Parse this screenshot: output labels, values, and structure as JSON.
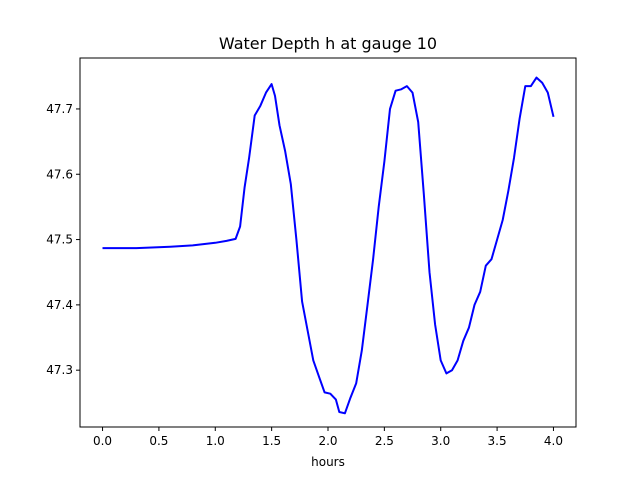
{
  "chart_data": {
    "type": "line",
    "title": "Water Depth h at gauge 10",
    "xlabel": "hours",
    "ylabel": "",
    "xlim": [
      -0.2,
      4.2
    ],
    "ylim": [
      47.213,
      47.778
    ],
    "grid": false,
    "x_ticks": [
      {
        "value": 0.0,
        "label": "0.0"
      },
      {
        "value": 0.5,
        "label": "0.5"
      },
      {
        "value": 1.0,
        "label": "1.0"
      },
      {
        "value": 1.5,
        "label": "1.5"
      },
      {
        "value": 2.0,
        "label": "2.0"
      },
      {
        "value": 2.5,
        "label": "2.5"
      },
      {
        "value": 3.0,
        "label": "3.0"
      },
      {
        "value": 3.5,
        "label": "3.5"
      },
      {
        "value": 4.0,
        "label": "4.0"
      }
    ],
    "y_ticks": [
      {
        "value": 47.3,
        "label": "47.3"
      },
      {
        "value": 47.4,
        "label": "47.4"
      },
      {
        "value": 47.5,
        "label": "47.5"
      },
      {
        "value": 47.6,
        "label": "47.6"
      },
      {
        "value": 47.7,
        "label": "47.7"
      }
    ],
    "series": [
      {
        "color": "#0000ff",
        "x": [
          0.0,
          0.3,
          0.6,
          0.8,
          1.0,
          1.1,
          1.18,
          1.22,
          1.26,
          1.3,
          1.35,
          1.4,
          1.45,
          1.5,
          1.53,
          1.57,
          1.62,
          1.67,
          1.72,
          1.77,
          1.82,
          1.87,
          1.92,
          1.97,
          2.02,
          2.07,
          2.1,
          2.15,
          2.2,
          2.25,
          2.3,
          2.35,
          2.4,
          2.45,
          2.5,
          2.55,
          2.6,
          2.65,
          2.7,
          2.75,
          2.8,
          2.85,
          2.9,
          2.95,
          3.0,
          3.05,
          3.1,
          3.15,
          3.2,
          3.25,
          3.3,
          3.35,
          3.4,
          3.45,
          3.5,
          3.55,
          3.6,
          3.65,
          3.7,
          3.75,
          3.8,
          3.85,
          3.9,
          3.95,
          4.0
        ],
        "y": [
          47.487,
          47.487,
          47.489,
          47.491,
          47.495,
          47.498,
          47.501,
          47.52,
          47.58,
          47.625,
          47.69,
          47.705,
          47.725,
          47.738,
          47.72,
          47.675,
          47.635,
          47.585,
          47.5,
          47.405,
          47.36,
          47.315,
          47.29,
          47.266,
          47.264,
          47.255,
          47.236,
          47.234,
          47.258,
          47.28,
          47.33,
          47.4,
          47.47,
          47.55,
          47.62,
          47.7,
          47.728,
          47.73,
          47.735,
          47.725,
          47.68,
          47.57,
          47.45,
          47.37,
          47.315,
          47.295,
          47.3,
          47.315,
          47.345,
          47.365,
          47.4,
          47.42,
          47.46,
          47.47,
          47.5,
          47.53,
          47.575,
          47.625,
          47.685,
          47.735,
          47.735,
          47.748,
          47.74,
          47.725,
          47.688
        ]
      }
    ]
  }
}
